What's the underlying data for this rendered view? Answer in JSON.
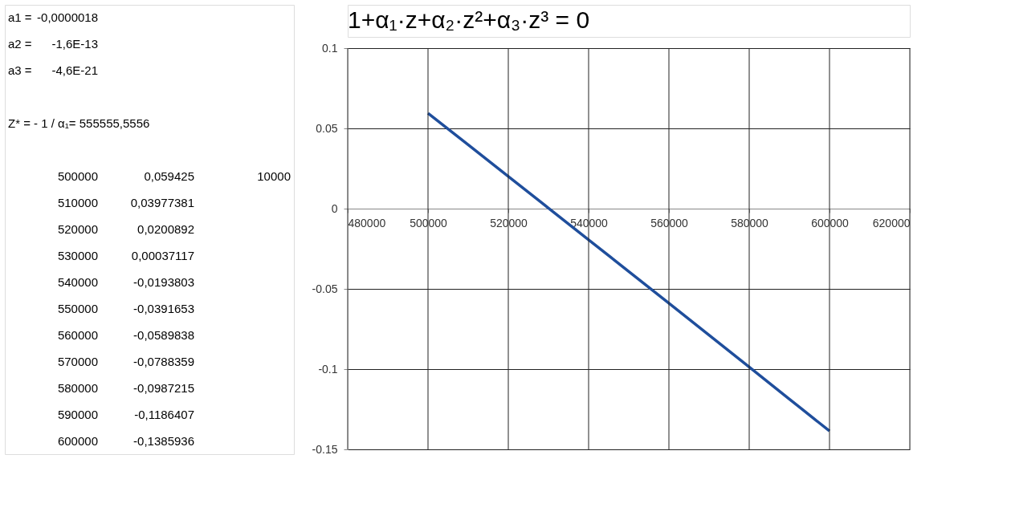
{
  "chart_data": {
    "type": "line",
    "title": "1+α₁·z+α₂·z²+α₃·z³ = 0",
    "x": [
      500000,
      510000,
      520000,
      530000,
      540000,
      550000,
      560000,
      570000,
      580000,
      590000,
      600000
    ],
    "series": [
      {
        "color": "#1f4e9c",
        "values": [
          0.059425,
          0.03977381,
          0.0200892,
          0.00037117,
          -0.0193803,
          -0.0391653,
          -0.0589838,
          -0.0788359,
          -0.0987215,
          -0.1186407,
          -0.1385936
        ]
      }
    ],
    "xlim": [
      480000,
      620000
    ],
    "xticks": [
      480000,
      500000,
      520000,
      540000,
      560000,
      580000,
      600000,
      620000
    ],
    "ylim": [
      -0.15,
      0.1
    ],
    "yticks": [
      {
        "value": -0.15,
        "label": "-0.15"
      },
      {
        "value": -0.1,
        "label": "-0.1"
      },
      {
        "value": -0.05,
        "label": "-0.05"
      },
      0,
      {
        "value": 0.05,
        "label": "0.05"
      },
      {
        "value": 0.1,
        "label": "0.1"
      }
    ],
    "grid": true,
    "legend": false,
    "marker": "none",
    "line_style": "solid",
    "annotations": [
      "a1 =",
      "-0,0000018",
      "a2 =",
      "-1,6E-13",
      "a3 =",
      "-4,6E-21",
      "Z* = - 1 / α₁= 555555,5556",
      "500000",
      "0,059425",
      "10000",
      "510000",
      "0,03977381",
      "520000",
      "0,0200892",
      "530000",
      "0,00037117",
      "540000",
      "-0,0193803",
      "550000",
      "-0,0391653",
      "560000",
      "-0,0589838",
      "570000",
      "-0,0788359",
      "580000",
      "-0,0987215",
      "590000",
      "-0,1186407",
      "600000",
      "-0,1385936"
    ]
  }
}
